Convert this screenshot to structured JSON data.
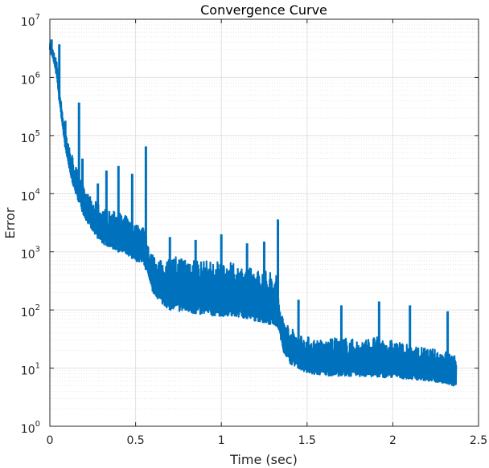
{
  "chart_data": {
    "type": "line",
    "title": "Convergence Curve",
    "xlabel": "Time (sec)",
    "ylabel": "Error",
    "xlim": [
      0,
      2.5
    ],
    "ylim": [
      1,
      10000000
    ],
    "yscale": "log",
    "grid": true,
    "minor_grid": true,
    "x_ticks": [
      "0",
      "0.5",
      "1",
      "1.5",
      "2",
      "2.5"
    ],
    "y_ticks": [
      {
        "base": "10",
        "exp": "0"
      },
      {
        "base": "10",
        "exp": "1"
      },
      {
        "base": "10",
        "exp": "2"
      },
      {
        "base": "10",
        "exp": "3"
      },
      {
        "base": "10",
        "exp": "4"
      },
      {
        "base": "10",
        "exp": "5"
      },
      {
        "base": "10",
        "exp": "6"
      },
      {
        "base": "10",
        "exp": "7"
      }
    ],
    "color": "#0072BD",
    "series": [
      {
        "envelope_lower": {
          "x": [
            0.0,
            0.02,
            0.04,
            0.06,
            0.08,
            0.1,
            0.12,
            0.15,
            0.18,
            0.2,
            0.25,
            0.3,
            0.35,
            0.4,
            0.45,
            0.5,
            0.55,
            0.57,
            0.58,
            0.6,
            0.65,
            0.7,
            0.8,
            0.9,
            1.0,
            1.1,
            1.2,
            1.3,
            1.33,
            1.34,
            1.36,
            1.4,
            1.45,
            1.5,
            1.6,
            1.7,
            1.8,
            1.9,
            2.0,
            2.1,
            2.2,
            2.3,
            2.35,
            2.37
          ],
          "y": [
            3000000,
            2000000,
            1000000,
            300000,
            100000,
            40000,
            20000,
            10000,
            6000,
            4000,
            2200,
            1400,
            1200,
            1000,
            850,
            700,
            600,
            400,
            300,
            200,
            130,
            100,
            90,
            80,
            78,
            75,
            65,
            55,
            50,
            40,
            20,
            12,
            10,
            8,
            7.5,
            7.3,
            7.2,
            7,
            6.8,
            6.5,
            6,
            5.5,
            5,
            4.5
          ]
        },
        "envelope_upper": {
          "x": [
            0.0,
            0.02,
            0.04,
            0.06,
            0.08,
            0.1,
            0.12,
            0.15,
            0.18,
            0.2,
            0.25,
            0.3,
            0.35,
            0.4,
            0.45,
            0.5,
            0.55,
            0.57,
            0.58,
            0.6,
            0.65,
            0.7,
            0.8,
            0.9,
            1.0,
            1.1,
            1.2,
            1.3,
            1.33,
            1.34,
            1.36,
            1.4,
            1.45,
            1.5,
            1.6,
            1.7,
            1.8,
            1.9,
            2.0,
            2.1,
            2.2,
            2.3,
            2.35,
            2.37
          ],
          "y": [
            4000000,
            3000000,
            2000000,
            500000,
            200000,
            100000,
            60000,
            30000,
            20000,
            12000,
            8000,
            6000,
            5000,
            5000,
            4000,
            3000,
            3000,
            2000,
            1000,
            900,
            700,
            800,
            900,
            700,
            700,
            600,
            500,
            450,
            400,
            100,
            80,
            50,
            40,
            35,
            30,
            35,
            30,
            35,
            30,
            25,
            22,
            20,
            18,
            15
          ]
        },
        "spikes": [
          {
            "x": 0.01,
            "y": 4500000
          },
          {
            "x": 0.055,
            "y": 3700000
          },
          {
            "x": 0.09,
            "y": 180000
          },
          {
            "x": 0.17,
            "y": 370000
          },
          {
            "x": 0.19,
            "y": 40000
          },
          {
            "x": 0.28,
            "y": 15000
          },
          {
            "x": 0.33,
            "y": 25000
          },
          {
            "x": 0.4,
            "y": 30000
          },
          {
            "x": 0.48,
            "y": 22000
          },
          {
            "x": 0.56,
            "y": 65000
          },
          {
            "x": 0.7,
            "y": 1800
          },
          {
            "x": 0.85,
            "y": 1600
          },
          {
            "x": 1.0,
            "y": 2000
          },
          {
            "x": 1.15,
            "y": 1400
          },
          {
            "x": 1.25,
            "y": 1500
          },
          {
            "x": 1.33,
            "y": 3600
          },
          {
            "x": 1.45,
            "y": 150
          },
          {
            "x": 1.7,
            "y": 120
          },
          {
            "x": 1.92,
            "y": 140
          },
          {
            "x": 2.1,
            "y": 120
          },
          {
            "x": 2.32,
            "y": 95
          }
        ]
      }
    ]
  }
}
